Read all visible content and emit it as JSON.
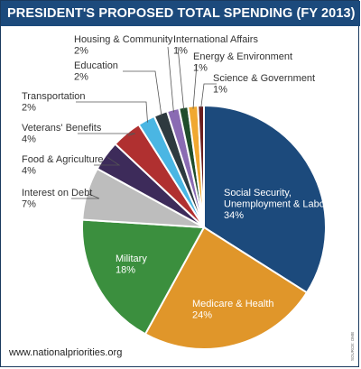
{
  "chart_data": {
    "type": "pie",
    "title": "PRESIDENT'S PROPOSED TOTAL SPENDING (FY 2013)",
    "slices": [
      {
        "name": "Social Security, Unemployment & Labor",
        "lines": [
          "Social Security,",
          "Unemployment & Labor"
        ],
        "pct_label": "34%",
        "value": 34.0,
        "color": "#1c4a7c",
        "label_color": "#ffffff"
      },
      {
        "name": "Medicare & Health",
        "lines": [
          "Medicare & Health"
        ],
        "pct_label": "24%",
        "value": 24.0,
        "color": "#e0962a",
        "label_color": "#ffffff"
      },
      {
        "name": "Military",
        "lines": [
          "Military"
        ],
        "pct_label": "18%",
        "value": 18.0,
        "color": "#3b8f3e",
        "label_color": "#ffffff"
      },
      {
        "name": "Interest on Debt",
        "lines": [
          "Interest on Debt"
        ],
        "pct_label": "7%",
        "value": 7.0,
        "color": "#bdbdbd",
        "label_color": "#333333"
      },
      {
        "name": "Food & Agriculture",
        "lines": [
          "Food & Agriculture"
        ],
        "pct_label": "4%",
        "value": 4.0,
        "color": "#3d2b5a",
        "label_color": "#333333"
      },
      {
        "name": "Veterans' Benefits",
        "lines": [
          "Veterans' Benefits"
        ],
        "pct_label": "4%",
        "value": 4.0,
        "color": "#b03030",
        "label_color": "#333333"
      },
      {
        "name": "Transportation",
        "lines": [
          "Transportation"
        ],
        "pct_label": "2%",
        "value": 2.3,
        "color": "#4ab6e3",
        "label_color": "#333333"
      },
      {
        "name": "Education",
        "lines": [
          "Education"
        ],
        "pct_label": "2%",
        "value": 1.8,
        "color": "#2e3a3f",
        "label_color": "#333333"
      },
      {
        "name": "Housing & Community",
        "lines": [
          "Housing & Community"
        ],
        "pct_label": "2%",
        "value": 1.6,
        "color": "#8a6bb3",
        "label_color": "#333333"
      },
      {
        "name": "International Affairs",
        "lines": [
          "International Affairs"
        ],
        "pct_label": "1%",
        "value": 1.2,
        "color": "#1f4d2b",
        "label_color": "#333333"
      },
      {
        "name": "Energy & Environment",
        "lines": [
          "Energy & Environment"
        ],
        "pct_label": "1%",
        "value": 1.3,
        "color": "#f0a830",
        "label_color": "#333333"
      },
      {
        "name": "Science & Government",
        "lines": [
          "Science & Government"
        ],
        "pct_label": "1%",
        "value": 0.8,
        "color": "#6b1f1f",
        "label_color": "#333333"
      }
    ]
  },
  "footer": {
    "website": "www.nationalpriorities.org",
    "source": "SOURCE: OMB"
  }
}
